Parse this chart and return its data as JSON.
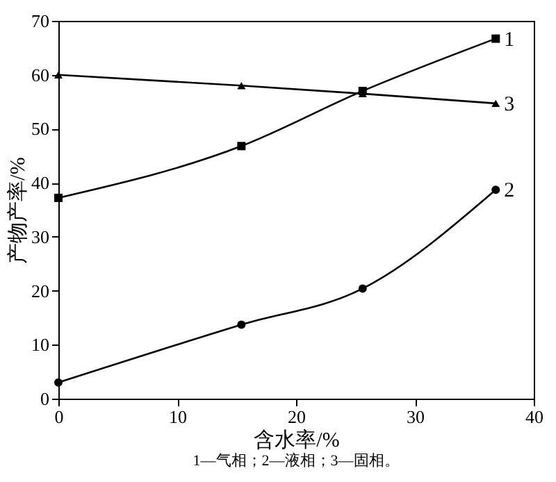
{
  "chart_data": {
    "type": "line",
    "xlabel": "含水率/%",
    "ylabel": "产物产率/%",
    "x": [
      0,
      15.4,
      25.6,
      36.8
    ],
    "series": [
      {
        "name": "1",
        "color": "#000000",
        "marker": "square",
        "values": [
          37.2,
          46.8,
          57.0,
          66.7
        ]
      },
      {
        "name": "2",
        "color": "#000000",
        "marker": "circle",
        "values": [
          3.0,
          13.7,
          20.4,
          38.7
        ]
      },
      {
        "name": "3",
        "color": "#000000",
        "marker": "triangle",
        "values": [
          60.0,
          58.0,
          56.5,
          54.7
        ]
      }
    ],
    "xlim": [
      0,
      40
    ],
    "xticks": [
      0,
      10,
      20,
      30,
      40
    ],
    "ylim": [
      0,
      70
    ],
    "yticks": [
      0,
      10,
      20,
      30,
      40,
      50,
      60,
      70
    ],
    "grid": false,
    "legend": false,
    "line_style": "solid",
    "annotations": [
      "1—气相；2—液相；3—固相。"
    ]
  }
}
